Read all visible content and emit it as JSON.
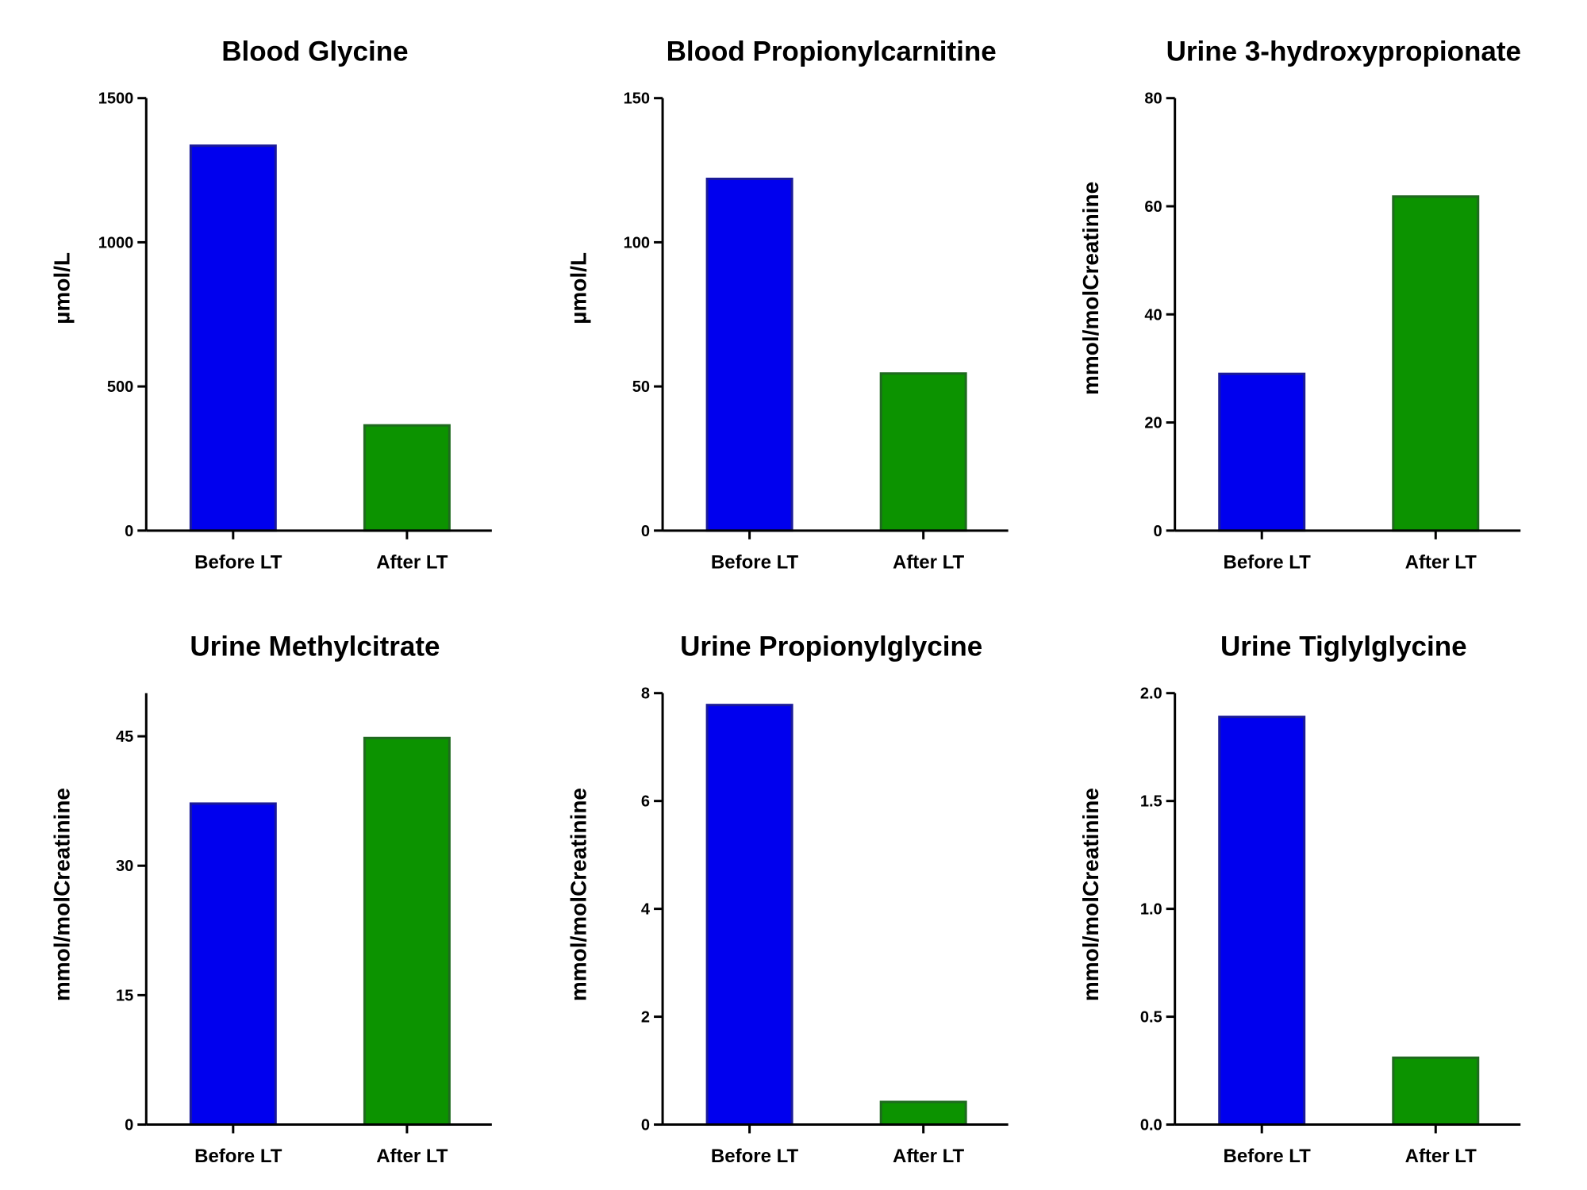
{
  "chart_data": [
    {
      "type": "bar",
      "title": "Blood Glycine",
      "ylabel": "µmol/L",
      "categories": [
        "Before LT",
        "After LT"
      ],
      "values": [
        1335,
        365
      ],
      "colors": [
        "#0000ee",
        "#0c9300"
      ],
      "edge_colors": [
        "#1a1a99",
        "#1f6a1f"
      ],
      "ylim": [
        0,
        1500
      ],
      "yticks": [
        0,
        500,
        1000,
        1500
      ],
      "ytick_labels": [
        "0",
        "500",
        "1000",
        "1500"
      ]
    },
    {
      "type": "bar",
      "title": "Blood Propionylcarnitine",
      "ylabel": "µmol/L",
      "categories": [
        "Before LT",
        "After LT"
      ],
      "values": [
        122,
        54.5
      ],
      "colors": [
        "#0000ee",
        "#0c9300"
      ],
      "edge_colors": [
        "#1a1a99",
        "#1f6a1f"
      ],
      "ylim": [
        0,
        150
      ],
      "yticks": [
        0,
        50,
        100,
        150
      ],
      "ytick_labels": [
        "0",
        "50",
        "100",
        "150"
      ]
    },
    {
      "type": "bar",
      "title": "Urine 3-hydroxypropionate",
      "ylabel": "mmol/molCreatinine",
      "categories": [
        "Before LT",
        "After LT"
      ],
      "values": [
        29,
        61.8
      ],
      "colors": [
        "#0000ee",
        "#0c9300"
      ],
      "edge_colors": [
        "#1a1a99",
        "#1f6a1f"
      ],
      "ylim": [
        0,
        80
      ],
      "yticks": [
        0,
        20,
        40,
        60,
        80
      ],
      "ytick_labels": [
        "0",
        "20",
        "40",
        "60",
        "80"
      ]
    },
    {
      "type": "bar",
      "title": "Urine Methylcitrate",
      "ylabel": "mmol/molCreatinine",
      "categories": [
        "Before LT",
        "After LT"
      ],
      "values": [
        37.2,
        44.8
      ],
      "colors": [
        "#0000ee",
        "#0c9300"
      ],
      "edge_colors": [
        "#1a1a99",
        "#1f6a1f"
      ],
      "ylim": [
        0,
        50
      ],
      "yticks": [
        0,
        15,
        30,
        45
      ],
      "ytick_labels": [
        "0",
        "15",
        "30",
        "45"
      ]
    },
    {
      "type": "bar",
      "title": "Urine Propionylglycine",
      "ylabel": "mmol/molCreatinine",
      "categories": [
        "Before LT",
        "After LT"
      ],
      "values": [
        7.78,
        0.42
      ],
      "colors": [
        "#0000ee",
        "#0c9300"
      ],
      "edge_colors": [
        "#1a1a99",
        "#1f6a1f"
      ],
      "ylim": [
        0,
        8
      ],
      "yticks": [
        0,
        2,
        4,
        6,
        8
      ],
      "ytick_labels": [
        "0",
        "2",
        "4",
        "6",
        "8"
      ]
    },
    {
      "type": "bar",
      "title": "Urine Tiglylglycine",
      "ylabel": "mmol/molCreatinine",
      "categories": [
        "Before LT",
        "After LT"
      ],
      "values": [
        1.89,
        0.31
      ],
      "colors": [
        "#0000ee",
        "#0c9300"
      ],
      "edge_colors": [
        "#1a1a99",
        "#1f6a1f"
      ],
      "ylim": [
        0,
        2
      ],
      "yticks": [
        0,
        0.5,
        1,
        1.5,
        2
      ],
      "ytick_labels": [
        "0.0",
        "0.5",
        "1.0",
        "1.5",
        "2.0"
      ]
    }
  ]
}
